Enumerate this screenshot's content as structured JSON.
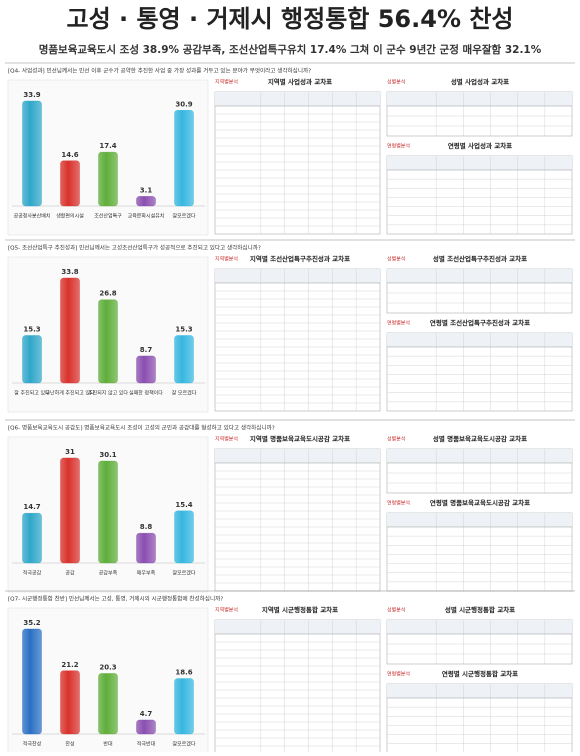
{
  "header": {
    "title": "고성 · 통영 · 거제시 행정통합 56.4% 찬성",
    "subtitle": "명품보육교육도시 조성 38.9% 공감부족, 조선산업특구유치 17.4% 그쳐 이 군수 9년간 군정 매우잘함 32.1%"
  },
  "section_labels": [
    "지역별분석",
    "성별분석",
    "연령별분석"
  ],
  "chart_data": [
    {
      "type": "bar",
      "question": "[Q4- 사업성과] 민선님께서는 민선 이후 군수가 공약한 추진한 사업 중 가장 성과를 거두고 있는 분야가 무엇이라고 생각하십니까?",
      "categories": [
        "공공청사분산배치",
        "생활편의시설",
        "조선산업특구",
        "교육문화시설유치",
        "잘모르겠다"
      ],
      "values": [
        33.9,
        14.6,
        17.4,
        3.1,
        30.9
      ],
      "colors": [
        "#2fa7c9",
        "#d9312b",
        "#5fae3a",
        "#8a4fb0",
        "#36b7e0"
      ],
      "table_titles": [
        "지역별 사업성과 교차표",
        "성별 사업성과 교차표",
        "연령별 사업성과 교차표"
      ]
    },
    {
      "type": "bar",
      "question": "[Q5- 조선산업특구 추진성과] 민선님께서는 고성조선산업특구가 성공적으로 추진되고 있다고 생각하십니까?",
      "categories": [
        "잘 추진되고 있다",
        "무난하게 추진되고 있다",
        "추진되지 않고 있다",
        "실패한 정책이다",
        "잘 모르겠다"
      ],
      "values": [
        15.3,
        33.8,
        26.8,
        8.7,
        15.3
      ],
      "colors": [
        "#2fa7c9",
        "#d9312b",
        "#5fae3a",
        "#8a4fb0",
        "#36b7e0"
      ],
      "table_titles": [
        "지역별 조선산업특구추진성과 교차표",
        "성별 조선산업특구추진성과 교차표",
        "연령별 조선산업특구추진성과 교차표"
      ]
    },
    {
      "type": "bar",
      "question": "[Q6- 명품보육교육도시 공감도] 명품보육교육도시 조성이 고성의 군민과 공감대를 형성하고 있다고 생각하십니까?",
      "categories": [
        "적극공감",
        "공감",
        "공감부족",
        "매우부족",
        "잘모르겠다"
      ],
      "values": [
        14.7,
        31.0,
        30.1,
        8.8,
        15.4
      ],
      "colors": [
        "#2fa7c9",
        "#d9312b",
        "#5fae3a",
        "#8a4fb0",
        "#36b7e0"
      ],
      "table_titles": [
        "지역별 명품보육교육도시공감 교차표",
        "성별 명품보육교육도시공감 교차표",
        "연령별 명품보육교육도시공감 교차표"
      ]
    },
    {
      "type": "bar",
      "question": "[Q7- 시군행정통합 찬반] 민선님께서는 고성, 통영, 거제시의 시군행정통합에 찬성하십니까?",
      "categories": [
        "적극찬성",
        "찬성",
        "반대",
        "적극반대",
        "잘모르겠다"
      ],
      "values": [
        35.2,
        21.2,
        20.3,
        4.7,
        18.6
      ],
      "colors": [
        "#2a6fc4",
        "#d9312b",
        "#5fae3a",
        "#8a4fb0",
        "#36b7e0"
      ],
      "table_titles": [
        "지역별 시군행정통합 교차표",
        "성별 시군행정통합 교차표",
        "연령별 시군행정통합 교차표"
      ]
    }
  ]
}
